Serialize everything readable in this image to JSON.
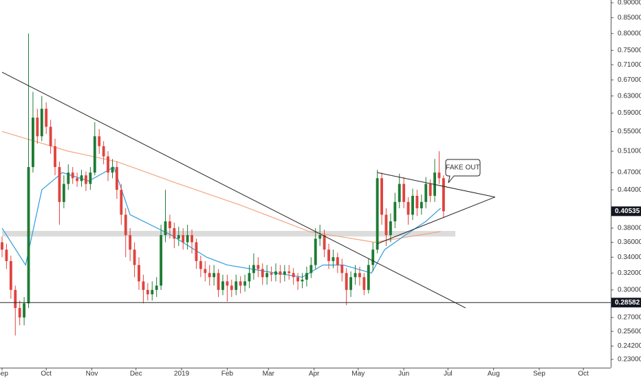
{
  "chart_data": {
    "type": "candlestick",
    "log_scale": true,
    "grid": false,
    "up_color": "#1e7b34",
    "down_color": "#e0443e",
    "xlim": [
      -1.4,
      413.6
    ],
    "xticks": [
      {
        "value": 0,
        "label": "Sep"
      },
      {
        "value": 30,
        "label": "Oct"
      },
      {
        "value": 61,
        "label": "Nov"
      },
      {
        "value": 91,
        "label": "Dec"
      },
      {
        "value": 122,
        "label": "2019"
      },
      {
        "value": 153,
        "label": "Feb"
      },
      {
        "value": 181,
        "label": "Mar"
      },
      {
        "value": 212,
        "label": "Apr"
      },
      {
        "value": 242,
        "label": "May"
      },
      {
        "value": 273,
        "label": "Jun"
      },
      {
        "value": 303,
        "label": "Jul"
      },
      {
        "value": 334,
        "label": "Aug"
      },
      {
        "value": 365,
        "label": "Sep"
      },
      {
        "value": 395,
        "label": "Oct"
      }
    ],
    "ylim": [
      0.2228,
      0.9095
    ],
    "yticks": [
      {
        "value": 0.9,
        "label": "0.90000"
      },
      {
        "value": 0.85,
        "label": "0.85000"
      },
      {
        "value": 0.8,
        "label": "0.80000"
      },
      {
        "value": 0.75,
        "label": "0.75000"
      },
      {
        "value": 0.71,
        "label": "0.71000"
      },
      {
        "value": 0.67,
        "label": "0.67000"
      },
      {
        "value": 0.63,
        "label": "0.63000"
      },
      {
        "value": 0.59,
        "label": "0.59000"
      },
      {
        "value": 0.55,
        "label": "0.55000"
      },
      {
        "value": 0.51,
        "label": "0.51000"
      },
      {
        "value": 0.47,
        "label": "0.47000"
      },
      {
        "value": 0.44,
        "label": "0.44000"
      },
      {
        "value": 0.38,
        "label": "0.38000"
      },
      {
        "value": 0.36,
        "label": "0.36000"
      },
      {
        "value": 0.34,
        "label": "0.34000"
      },
      {
        "value": 0.32,
        "label": "0.32000"
      },
      {
        "value": 0.3,
        "label": "0.30000"
      },
      {
        "value": 0.27,
        "label": "0.27000"
      },
      {
        "value": 0.256,
        "label": "0.25600"
      },
      {
        "value": 0.242,
        "label": "0.24200"
      },
      {
        "value": 0.23,
        "label": "0.23000"
      }
    ],
    "last_price": 0.40535,
    "horizontal_line": 0.28582,
    "annotation": "FAKE OUT",
    "candles": {
      "x": [
        0,
        3,
        6,
        9,
        12,
        15,
        18,
        21,
        24,
        27,
        30,
        33,
        36,
        39,
        42,
        45,
        48,
        51,
        54,
        57,
        60,
        63,
        66,
        69,
        72,
        75,
        78,
        81,
        84,
        87,
        90,
        93,
        96,
        99,
        102,
        105,
        108,
        111,
        114,
        117,
        120,
        123,
        126,
        129,
        132,
        135,
        138,
        141,
        144,
        147,
        150,
        153,
        156,
        159,
        162,
        165,
        168,
        171,
        174,
        177,
        180,
        183,
        186,
        189,
        192,
        195,
        198,
        201,
        204,
        207,
        210,
        213,
        216,
        219,
        222,
        225,
        228,
        231,
        234,
        237,
        240,
        243,
        246,
        249,
        252,
        255,
        258,
        261,
        264,
        267,
        270,
        273,
        276,
        279,
        282,
        285,
        288,
        291,
        294,
        297,
        300
      ],
      "open": [
        0.36,
        0.35,
        0.335,
        0.3,
        0.28,
        0.27,
        0.285,
        0.48,
        0.58,
        0.54,
        0.6,
        0.56,
        0.52,
        0.48,
        0.42,
        0.45,
        0.47,
        0.46,
        0.455,
        0.465,
        0.45,
        0.47,
        0.54,
        0.52,
        0.5,
        0.47,
        0.48,
        0.44,
        0.4,
        0.37,
        0.35,
        0.33,
        0.31,
        0.3,
        0.295,
        0.3,
        0.305,
        0.37,
        0.39,
        0.38,
        0.365,
        0.37,
        0.36,
        0.37,
        0.36,
        0.335,
        0.325,
        0.32,
        0.315,
        0.32,
        0.3,
        0.31,
        0.305,
        0.3,
        0.31,
        0.305,
        0.31,
        0.32,
        0.33,
        0.325,
        0.315,
        0.32,
        0.318,
        0.322,
        0.318,
        0.322,
        0.32,
        0.315,
        0.31,
        0.312,
        0.32,
        0.33,
        0.365,
        0.37,
        0.35,
        0.335,
        0.34,
        0.33,
        0.32,
        0.3,
        0.315,
        0.32,
        0.315,
        0.3,
        0.33,
        0.35,
        0.46,
        0.4,
        0.37,
        0.39,
        0.42,
        0.45,
        0.42,
        0.4,
        0.43,
        0.41,
        0.42,
        0.45,
        0.43,
        0.47,
        0.46
      ],
      "high": [
        0.368,
        0.358,
        0.342,
        0.305,
        0.288,
        0.292,
        0.8,
        0.64,
        0.6,
        0.63,
        0.615,
        0.575,
        0.535,
        0.49,
        0.465,
        0.485,
        0.48,
        0.47,
        0.475,
        0.472,
        0.48,
        0.57,
        0.555,
        0.53,
        0.51,
        0.495,
        0.49,
        0.45,
        0.41,
        0.38,
        0.36,
        0.34,
        0.318,
        0.308,
        0.31,
        0.315,
        0.385,
        0.44,
        0.4,
        0.388,
        0.382,
        0.38,
        0.385,
        0.378,
        0.365,
        0.342,
        0.335,
        0.33,
        0.33,
        0.325,
        0.318,
        0.318,
        0.312,
        0.318,
        0.316,
        0.318,
        0.33,
        0.345,
        0.34,
        0.332,
        0.33,
        0.328,
        0.332,
        0.33,
        0.33,
        0.33,
        0.326,
        0.32,
        0.32,
        0.328,
        0.34,
        0.38,
        0.385,
        0.378,
        0.358,
        0.35,
        0.346,
        0.338,
        0.326,
        0.322,
        0.33,
        0.328,
        0.32,
        0.338,
        0.36,
        0.475,
        0.47,
        0.41,
        0.402,
        0.435,
        0.468,
        0.462,
        0.428,
        0.442,
        0.44,
        0.432,
        0.462,
        0.458,
        0.495,
        0.51,
        0.465
      ],
      "low": [
        0.34,
        0.325,
        0.29,
        0.252,
        0.262,
        0.262,
        0.28,
        0.47,
        0.525,
        0.53,
        0.545,
        0.505,
        0.465,
        0.385,
        0.41,
        0.44,
        0.45,
        0.445,
        0.445,
        0.438,
        0.44,
        0.465,
        0.505,
        0.485,
        0.455,
        0.46,
        0.425,
        0.385,
        0.34,
        0.335,
        0.315,
        0.3,
        0.285,
        0.288,
        0.288,
        0.292,
        0.3,
        0.36,
        0.365,
        0.352,
        0.355,
        0.35,
        0.35,
        0.345,
        0.325,
        0.315,
        0.31,
        0.305,
        0.305,
        0.292,
        0.294,
        0.287,
        0.292,
        0.294,
        0.296,
        0.298,
        0.302,
        0.312,
        0.315,
        0.306,
        0.306,
        0.31,
        0.31,
        0.308,
        0.31,
        0.312,
        0.306,
        0.3,
        0.302,
        0.304,
        0.314,
        0.325,
        0.355,
        0.34,
        0.325,
        0.326,
        0.32,
        0.31,
        0.283,
        0.292,
        0.306,
        0.305,
        0.294,
        0.296,
        0.322,
        0.345,
        0.385,
        0.355,
        0.36,
        0.38,
        0.41,
        0.41,
        0.385,
        0.392,
        0.398,
        0.4,
        0.41,
        0.42,
        0.42,
        0.45,
        0.395
      ],
      "close": [
        0.35,
        0.335,
        0.3,
        0.28,
        0.27,
        0.285,
        0.48,
        0.58,
        0.54,
        0.6,
        0.56,
        0.52,
        0.48,
        0.42,
        0.45,
        0.47,
        0.46,
        0.455,
        0.465,
        0.45,
        0.47,
        0.54,
        0.52,
        0.5,
        0.47,
        0.48,
        0.44,
        0.4,
        0.37,
        0.35,
        0.33,
        0.31,
        0.3,
        0.295,
        0.3,
        0.305,
        0.37,
        0.39,
        0.38,
        0.365,
        0.37,
        0.36,
        0.37,
        0.36,
        0.335,
        0.325,
        0.32,
        0.315,
        0.32,
        0.3,
        0.31,
        0.305,
        0.3,
        0.31,
        0.305,
        0.31,
        0.32,
        0.33,
        0.325,
        0.315,
        0.32,
        0.318,
        0.322,
        0.318,
        0.322,
        0.32,
        0.315,
        0.31,
        0.312,
        0.32,
        0.33,
        0.365,
        0.37,
        0.35,
        0.335,
        0.34,
        0.33,
        0.32,
        0.3,
        0.315,
        0.32,
        0.315,
        0.3,
        0.33,
        0.35,
        0.46,
        0.4,
        0.37,
        0.39,
        0.42,
        0.45,
        0.42,
        0.4,
        0.43,
        0.41,
        0.42,
        0.45,
        0.43,
        0.47,
        0.46,
        0.40535
      ]
    },
    "moving_averages": [
      {
        "color": "#f4a582",
        "x": [
          0,
          45,
          78,
          120,
          162,
          209,
          253,
          298
        ],
        "values": [
          0.55,
          0.51,
          0.49,
          0.45,
          0.415,
          0.375,
          0.36,
          0.375
        ]
      },
      {
        "color": "#2f9be0",
        "x": [
          0,
          16,
          27,
          41,
          59,
          76,
          87,
          115,
          139,
          153,
          186,
          204,
          218,
          232,
          251,
          260,
          274,
          288,
          298
        ],
        "values": [
          0.38,
          0.33,
          0.44,
          0.47,
          0.455,
          0.48,
          0.4,
          0.37,
          0.34,
          0.33,
          0.32,
          0.315,
          0.33,
          0.33,
          0.32,
          0.35,
          0.37,
          0.39,
          0.41
        ]
      }
    ],
    "zone": {
      "x": [
        0,
        308
      ],
      "values": [
        0.368,
        0.376
      ]
    },
    "trendlines": [
      {
        "x": [
          0,
          315
        ],
        "values": [
          0.69,
          0.28
        ]
      },
      {
        "x": [
          255,
          335
        ],
        "values": [
          0.47,
          0.428
        ]
      },
      {
        "x": [
          255,
          335
        ],
        "values": [
          0.358,
          0.428
        ]
      }
    ]
  }
}
